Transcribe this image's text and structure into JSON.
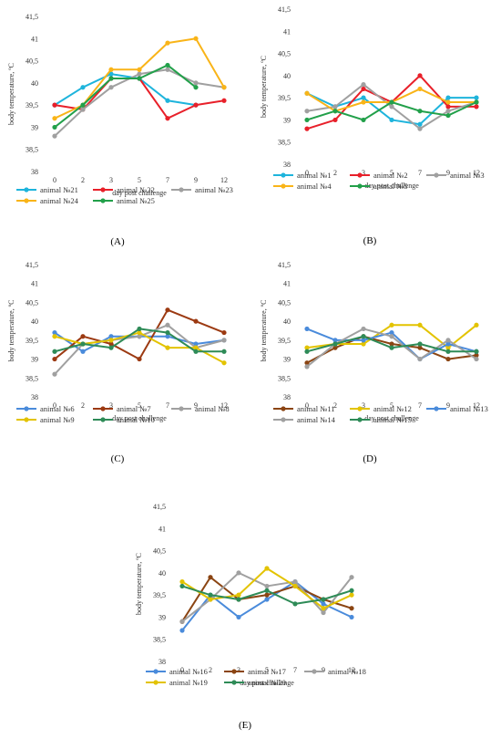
{
  "chart_data": [
    {
      "type": "line",
      "panel": "(A)",
      "xlabel": "day post challenge",
      "ylabel": "body temperature, ºC",
      "categories": [
        "0",
        "2",
        "3",
        "5",
        "7",
        "9",
        "12"
      ],
      "y_ticks": [
        "38",
        "38,5",
        "39",
        "39,5",
        "40",
        "40,5",
        "41",
        "41,5"
      ],
      "ylim": [
        38,
        41.5
      ],
      "grid": false,
      "legend_position": "bottom",
      "series": [
        {
          "name": "animal №21",
          "color": "#1EB4DC",
          "values": [
            39.5,
            39.9,
            40.2,
            40.1,
            39.6,
            39.5,
            null
          ]
        },
        {
          "name": "animal №22",
          "color": "#E8202A",
          "values": [
            39.5,
            39.4,
            40.1,
            40.1,
            39.2,
            39.5,
            39.6
          ]
        },
        {
          "name": "animal №23",
          "color": "#A0A0A0",
          "values": [
            38.8,
            39.4,
            39.9,
            40.2,
            40.3,
            40.0,
            39.9
          ]
        },
        {
          "name": "animal №24",
          "color": "#F9B418",
          "values": [
            39.2,
            39.5,
            40.3,
            40.3,
            40.9,
            41.0,
            39.9
          ]
        },
        {
          "name": "animal №25",
          "color": "#22A04A",
          "values": [
            39.0,
            39.5,
            40.1,
            40.1,
            40.4,
            39.9,
            null
          ]
        }
      ]
    },
    {
      "type": "line",
      "panel": "(B)",
      "xlabel": "day post challenge",
      "ylabel": "body temperature, ºC",
      "categories": [
        "0",
        "2",
        "3",
        "5",
        "7",
        "9",
        "12"
      ],
      "y_ticks": [
        "38",
        "38,5",
        "39",
        "39,5",
        "40",
        "40,5",
        "41",
        "41,5"
      ],
      "ylim": [
        38,
        41.5
      ],
      "grid": false,
      "legend_position": "bottom",
      "series": [
        {
          "name": "animal №1",
          "color": "#1EB4DC",
          "values": [
            39.6,
            39.3,
            39.5,
            39.0,
            38.9,
            39.5,
            39.5
          ]
        },
        {
          "name": "animal №2",
          "color": "#E8202A",
          "values": [
            38.8,
            39.0,
            39.7,
            39.4,
            40.0,
            39.3,
            39.3
          ]
        },
        {
          "name": "animal №3",
          "color": "#A0A0A0",
          "values": [
            39.2,
            39.3,
            39.8,
            39.3,
            38.8,
            39.2,
            39.4
          ]
        },
        {
          "name": "animal №4",
          "color": "#F9B418",
          "values": [
            39.6,
            39.2,
            39.4,
            39.4,
            39.7,
            39.4,
            39.4
          ]
        },
        {
          "name": "animal №5",
          "color": "#22A04A",
          "values": [
            39.0,
            39.2,
            39.0,
            39.4,
            39.2,
            39.1,
            39.4
          ]
        }
      ]
    },
    {
      "type": "line",
      "panel": "(C)",
      "xlabel": "day post challenge",
      "ylabel": "body temperature, ºC",
      "categories": [
        "0",
        "2",
        "3",
        "5",
        "7",
        "9",
        "12"
      ],
      "y_ticks": [
        "38",
        "38,5",
        "39",
        "39,5",
        "40",
        "40,5",
        "41",
        "41,5"
      ],
      "ylim": [
        38,
        41.5
      ],
      "grid": false,
      "legend_position": "bottom",
      "series": [
        {
          "name": "animal №6",
          "color": "#4A8BDB",
          "values": [
            39.7,
            39.2,
            39.6,
            39.6,
            39.6,
            39.4,
            39.5
          ]
        },
        {
          "name": "animal №7",
          "color": "#9C3A12",
          "values": [
            39.0,
            39.6,
            39.4,
            39.0,
            40.3,
            40.0,
            39.7
          ]
        },
        {
          "name": "animal №8",
          "color": "#A0A0A0",
          "values": [
            38.6,
            39.4,
            39.5,
            39.6,
            39.9,
            39.3,
            39.5
          ]
        },
        {
          "name": "animal №9",
          "color": "#E3C300",
          "values": [
            39.6,
            39.4,
            39.5,
            39.7,
            39.3,
            39.3,
            38.9
          ]
        },
        {
          "name": "animal №10",
          "color": "#2E8B57",
          "values": [
            39.2,
            39.4,
            39.3,
            39.8,
            39.7,
            39.2,
            39.2
          ]
        }
      ]
    },
    {
      "type": "line",
      "panel": "(D)",
      "xlabel": "day post challenge",
      "ylabel": "body temperature, ºC",
      "categories": [
        "0",
        "2",
        "3",
        "5",
        "7",
        "9",
        "12"
      ],
      "y_ticks": [
        "38",
        "38,5",
        "39",
        "39,5",
        "40",
        "40,5",
        "41",
        "41,5"
      ],
      "ylim": [
        38,
        41.5
      ],
      "grid": false,
      "legend_position": "bottom",
      "series": [
        {
          "name": "animal №11",
          "color": "#8B4513",
          "values": [
            38.9,
            39.3,
            39.6,
            39.4,
            39.3,
            39.0,
            39.1
          ]
        },
        {
          "name": "animal №12",
          "color": "#E3C300",
          "values": [
            39.3,
            39.4,
            39.4,
            39.9,
            39.9,
            39.3,
            39.9
          ]
        },
        {
          "name": "animal №13",
          "color": "#4A8BDB",
          "values": [
            39.8,
            39.5,
            39.5,
            39.7,
            39.0,
            39.4,
            39.2
          ]
        },
        {
          "name": "animal №14",
          "color": "#A0A0A0",
          "values": [
            38.8,
            39.4,
            39.8,
            39.6,
            39.0,
            39.5,
            39.0
          ]
        },
        {
          "name": "animal №15",
          "color": "#2E8B57",
          "values": [
            39.2,
            39.4,
            39.6,
            39.3,
            39.4,
            39.2,
            39.2
          ]
        }
      ]
    },
    {
      "type": "line",
      "panel": "(E)",
      "xlabel": "day post challenge",
      "ylabel": "body temperature, ºC",
      "categories": [
        "0",
        "2",
        "3",
        "5",
        "7",
        "9",
        "12"
      ],
      "y_ticks": [
        "38",
        "38,5",
        "39",
        "39,5",
        "40",
        "40,5",
        "41",
        "41,5"
      ],
      "ylim": [
        38,
        41.5
      ],
      "grid": false,
      "legend_position": "bottom",
      "series": [
        {
          "name": "animal №16",
          "color": "#4A8BDB",
          "values": [
            38.7,
            39.5,
            39.0,
            39.4,
            39.8,
            39.3,
            39.0
          ]
        },
        {
          "name": "animal №17",
          "color": "#8B4513",
          "values": [
            38.9,
            39.9,
            39.4,
            39.5,
            39.7,
            39.4,
            39.2
          ]
        },
        {
          "name": "animal №18",
          "color": "#A0A0A0",
          "values": [
            38.9,
            39.4,
            40.0,
            39.7,
            39.8,
            39.1,
            39.9
          ]
        },
        {
          "name": "animal №19",
          "color": "#E3C300",
          "values": [
            39.8,
            39.4,
            39.5,
            40.1,
            39.7,
            39.2,
            39.5
          ]
        },
        {
          "name": "animal №20",
          "color": "#2E8B57",
          "values": [
            39.7,
            39.5,
            39.4,
            39.6,
            39.3,
            39.4,
            39.6
          ]
        }
      ]
    }
  ]
}
